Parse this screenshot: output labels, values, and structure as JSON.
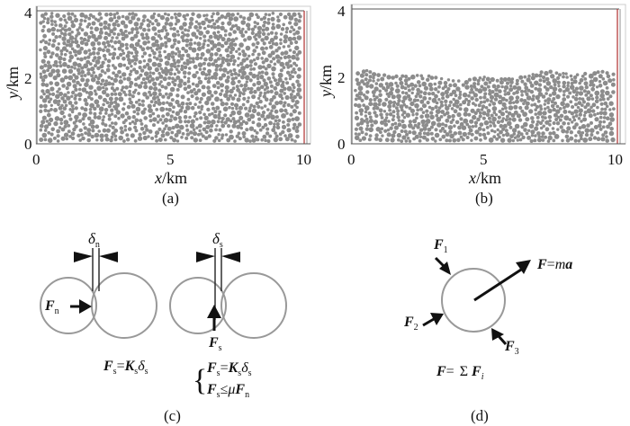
{
  "panels": {
    "a": {
      "caption": "(a)",
      "x_label_var": "x",
      "x_label_unit": "/km",
      "y_label_var": "y",
      "y_label_unit": "/km",
      "x_ticks": [
        "0",
        "5",
        "10"
      ],
      "y_ticks": [
        "0",
        "2",
        "4"
      ]
    },
    "b": {
      "caption": "(b)",
      "x_label_var": "x",
      "x_label_unit": "/km",
      "y_label_var": "y",
      "y_label_unit": "/km",
      "x_ticks": [
        "0",
        "5",
        "10"
      ],
      "y_ticks": [
        "0",
        "2",
        "4"
      ]
    },
    "c": {
      "caption": "(c)",
      "normal": {
        "overlap_symbol": "δ",
        "overlap_sub": "n",
        "force_symbol": "F",
        "force_sub": "n",
        "law": {
          "lhs": "F",
          "lhs_sub": "s",
          "eq": "=",
          "k": "K",
          "k_sub": "s",
          "d": "δ",
          "d_sub": "s"
        }
      },
      "shear": {
        "overlap_symbol": "δ",
        "overlap_sub": "s",
        "force_symbol": "F",
        "force_sub": "s",
        "law1": {
          "lhs": "F",
          "lhs_sub": "s",
          "eq": "=",
          "k": "K",
          "k_sub": "s",
          "d": "δ",
          "d_sub": "s"
        },
        "law2": {
          "lhs": "F",
          "lhs_sub": "s",
          "le": "≤",
          "mu": "μ",
          "rhs": "F",
          "rhs_sub": "n"
        }
      }
    },
    "d": {
      "caption": "(d)",
      "f1": {
        "sym": "F",
        "sub": "1"
      },
      "f2": {
        "sym": "F",
        "sub": "2"
      },
      "f3": {
        "sym": "F",
        "sub": "3"
      },
      "resultant": {
        "sym": "F",
        "eq": "=",
        "m": "m",
        "a": "a"
      },
      "sum": {
        "sym": "F",
        "eq": "=",
        "sigma": "Σ",
        "fi": "F",
        "fi_sub": "i"
      }
    }
  },
  "colors": {
    "particle": "#8c8c8c",
    "circle_stroke": "#999999",
    "wall_red": "#b03030",
    "frame": "#555555"
  }
}
